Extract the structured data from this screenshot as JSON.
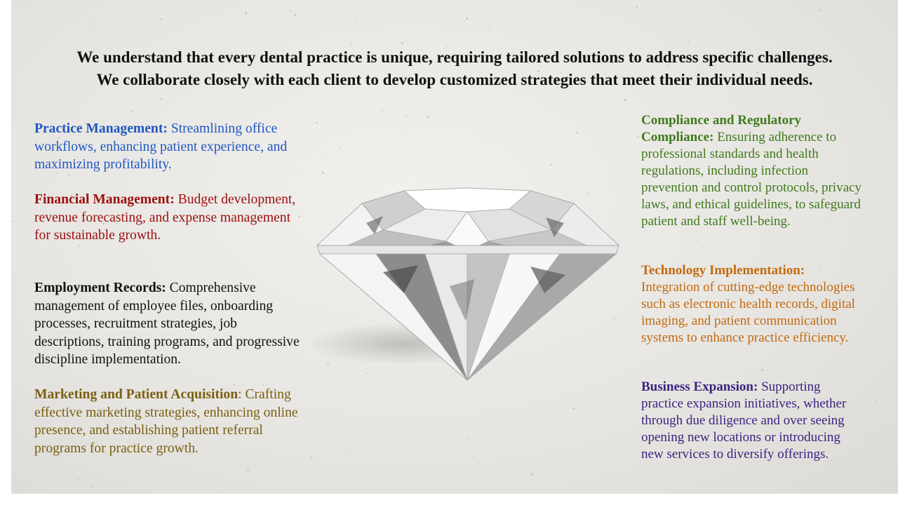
{
  "headline": {
    "line1": "We understand that every dental practice is unique, requiring tailored solutions to address specific challenges.",
    "line2": "We collaborate closely with each client to develop customized strategies that meet their individual needs."
  },
  "colors": {
    "practice": "#1f57c3",
    "financial": "#9b0f0f",
    "employment": "#111111",
    "marketing": "#7a5f10",
    "compliance": "#3f7a1c",
    "technology": "#c26a10",
    "business": "#3b2380"
  },
  "services": {
    "practice": {
      "title": "Practice Management:",
      "body": " Streamlining office workflows, enhancing patient experience, and maximizing profitability."
    },
    "financial": {
      "title": "Financial Management:",
      "body": " Budget development, revenue forecasting, and expense management for sustainable growth."
    },
    "employment": {
      "title": "Employment Records:",
      "body": " Comprehensive management of employee files, onboarding processes, recruitment strategies, job descriptions, training programs, and progressive discipline implementation."
    },
    "marketing": {
      "title": "Marketing and Patient Acquisition",
      "body": ": Crafting effective marketing strategies, enhancing online presence, and establishing patient referral programs for practice growth."
    },
    "compliance": {
      "title": "Compliance and Regulatory Compliance:",
      "body": " Ensuring adherence to professional standards and health regulations, including infection prevention and control protocols, privacy laws, and ethical guidelines, to safeguard patient and staff well-being."
    },
    "technology": {
      "title": "Technology Implementation:",
      "body": " Integration of cutting-edge technologies such as electronic health records, digital imaging, and patient communication systems to enhance practice efficiency."
    },
    "business": {
      "title": "Business Expansion:",
      "body": " Supporting practice expansion initiatives, whether through due diligence and over seeing opening new locations or introducing new services to diversify offerings."
    }
  },
  "image": {
    "icon": "diamond-icon"
  }
}
